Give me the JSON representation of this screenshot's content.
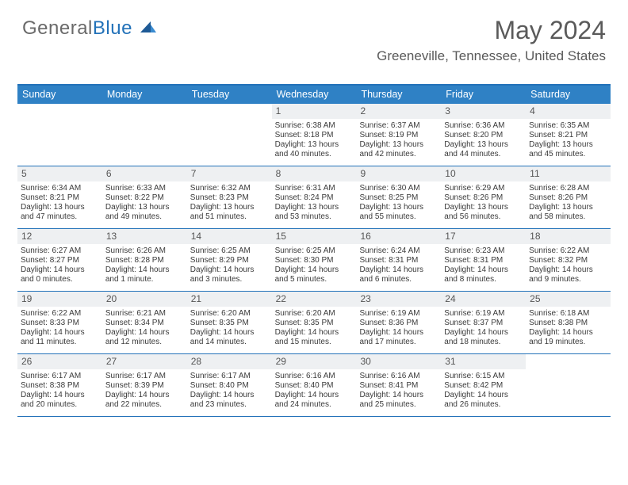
{
  "logo": {
    "part1": "General",
    "part2": "Blue"
  },
  "title": "May 2024",
  "location": "Greeneville, Tennessee, United States",
  "colors": {
    "header_bg": "#2f81c5",
    "header_border": "#2372b9",
    "daynum_bg": "#eef0f2",
    "text": "#3a3a3a",
    "title_text": "#5a5a5a"
  },
  "day_names": [
    "Sunday",
    "Monday",
    "Tuesday",
    "Wednesday",
    "Thursday",
    "Friday",
    "Saturday"
  ],
  "weeks": [
    [
      {
        "n": "",
        "sr": "",
        "ss": "",
        "dl1": "",
        "dl2": ""
      },
      {
        "n": "",
        "sr": "",
        "ss": "",
        "dl1": "",
        "dl2": ""
      },
      {
        "n": "",
        "sr": "",
        "ss": "",
        "dl1": "",
        "dl2": ""
      },
      {
        "n": "1",
        "sr": "Sunrise: 6:38 AM",
        "ss": "Sunset: 8:18 PM",
        "dl1": "Daylight: 13 hours",
        "dl2": "and 40 minutes."
      },
      {
        "n": "2",
        "sr": "Sunrise: 6:37 AM",
        "ss": "Sunset: 8:19 PM",
        "dl1": "Daylight: 13 hours",
        "dl2": "and 42 minutes."
      },
      {
        "n": "3",
        "sr": "Sunrise: 6:36 AM",
        "ss": "Sunset: 8:20 PM",
        "dl1": "Daylight: 13 hours",
        "dl2": "and 44 minutes."
      },
      {
        "n": "4",
        "sr": "Sunrise: 6:35 AM",
        "ss": "Sunset: 8:21 PM",
        "dl1": "Daylight: 13 hours",
        "dl2": "and 45 minutes."
      }
    ],
    [
      {
        "n": "5",
        "sr": "Sunrise: 6:34 AM",
        "ss": "Sunset: 8:21 PM",
        "dl1": "Daylight: 13 hours",
        "dl2": "and 47 minutes."
      },
      {
        "n": "6",
        "sr": "Sunrise: 6:33 AM",
        "ss": "Sunset: 8:22 PM",
        "dl1": "Daylight: 13 hours",
        "dl2": "and 49 minutes."
      },
      {
        "n": "7",
        "sr": "Sunrise: 6:32 AM",
        "ss": "Sunset: 8:23 PM",
        "dl1": "Daylight: 13 hours",
        "dl2": "and 51 minutes."
      },
      {
        "n": "8",
        "sr": "Sunrise: 6:31 AM",
        "ss": "Sunset: 8:24 PM",
        "dl1": "Daylight: 13 hours",
        "dl2": "and 53 minutes."
      },
      {
        "n": "9",
        "sr": "Sunrise: 6:30 AM",
        "ss": "Sunset: 8:25 PM",
        "dl1": "Daylight: 13 hours",
        "dl2": "and 55 minutes."
      },
      {
        "n": "10",
        "sr": "Sunrise: 6:29 AM",
        "ss": "Sunset: 8:26 PM",
        "dl1": "Daylight: 13 hours",
        "dl2": "and 56 minutes."
      },
      {
        "n": "11",
        "sr": "Sunrise: 6:28 AM",
        "ss": "Sunset: 8:26 PM",
        "dl1": "Daylight: 13 hours",
        "dl2": "and 58 minutes."
      }
    ],
    [
      {
        "n": "12",
        "sr": "Sunrise: 6:27 AM",
        "ss": "Sunset: 8:27 PM",
        "dl1": "Daylight: 14 hours",
        "dl2": "and 0 minutes."
      },
      {
        "n": "13",
        "sr": "Sunrise: 6:26 AM",
        "ss": "Sunset: 8:28 PM",
        "dl1": "Daylight: 14 hours",
        "dl2": "and 1 minute."
      },
      {
        "n": "14",
        "sr": "Sunrise: 6:25 AM",
        "ss": "Sunset: 8:29 PM",
        "dl1": "Daylight: 14 hours",
        "dl2": "and 3 minutes."
      },
      {
        "n": "15",
        "sr": "Sunrise: 6:25 AM",
        "ss": "Sunset: 8:30 PM",
        "dl1": "Daylight: 14 hours",
        "dl2": "and 5 minutes."
      },
      {
        "n": "16",
        "sr": "Sunrise: 6:24 AM",
        "ss": "Sunset: 8:31 PM",
        "dl1": "Daylight: 14 hours",
        "dl2": "and 6 minutes."
      },
      {
        "n": "17",
        "sr": "Sunrise: 6:23 AM",
        "ss": "Sunset: 8:31 PM",
        "dl1": "Daylight: 14 hours",
        "dl2": "and 8 minutes."
      },
      {
        "n": "18",
        "sr": "Sunrise: 6:22 AM",
        "ss": "Sunset: 8:32 PM",
        "dl1": "Daylight: 14 hours",
        "dl2": "and 9 minutes."
      }
    ],
    [
      {
        "n": "19",
        "sr": "Sunrise: 6:22 AM",
        "ss": "Sunset: 8:33 PM",
        "dl1": "Daylight: 14 hours",
        "dl2": "and 11 minutes."
      },
      {
        "n": "20",
        "sr": "Sunrise: 6:21 AM",
        "ss": "Sunset: 8:34 PM",
        "dl1": "Daylight: 14 hours",
        "dl2": "and 12 minutes."
      },
      {
        "n": "21",
        "sr": "Sunrise: 6:20 AM",
        "ss": "Sunset: 8:35 PM",
        "dl1": "Daylight: 14 hours",
        "dl2": "and 14 minutes."
      },
      {
        "n": "22",
        "sr": "Sunrise: 6:20 AM",
        "ss": "Sunset: 8:35 PM",
        "dl1": "Daylight: 14 hours",
        "dl2": "and 15 minutes."
      },
      {
        "n": "23",
        "sr": "Sunrise: 6:19 AM",
        "ss": "Sunset: 8:36 PM",
        "dl1": "Daylight: 14 hours",
        "dl2": "and 17 minutes."
      },
      {
        "n": "24",
        "sr": "Sunrise: 6:19 AM",
        "ss": "Sunset: 8:37 PM",
        "dl1": "Daylight: 14 hours",
        "dl2": "and 18 minutes."
      },
      {
        "n": "25",
        "sr": "Sunrise: 6:18 AM",
        "ss": "Sunset: 8:38 PM",
        "dl1": "Daylight: 14 hours",
        "dl2": "and 19 minutes."
      }
    ],
    [
      {
        "n": "26",
        "sr": "Sunrise: 6:17 AM",
        "ss": "Sunset: 8:38 PM",
        "dl1": "Daylight: 14 hours",
        "dl2": "and 20 minutes."
      },
      {
        "n": "27",
        "sr": "Sunrise: 6:17 AM",
        "ss": "Sunset: 8:39 PM",
        "dl1": "Daylight: 14 hours",
        "dl2": "and 22 minutes."
      },
      {
        "n": "28",
        "sr": "Sunrise: 6:17 AM",
        "ss": "Sunset: 8:40 PM",
        "dl1": "Daylight: 14 hours",
        "dl2": "and 23 minutes."
      },
      {
        "n": "29",
        "sr": "Sunrise: 6:16 AM",
        "ss": "Sunset: 8:40 PM",
        "dl1": "Daylight: 14 hours",
        "dl2": "and 24 minutes."
      },
      {
        "n": "30",
        "sr": "Sunrise: 6:16 AM",
        "ss": "Sunset: 8:41 PM",
        "dl1": "Daylight: 14 hours",
        "dl2": "and 25 minutes."
      },
      {
        "n": "31",
        "sr": "Sunrise: 6:15 AM",
        "ss": "Sunset: 8:42 PM",
        "dl1": "Daylight: 14 hours",
        "dl2": "and 26 minutes."
      },
      {
        "n": "",
        "sr": "",
        "ss": "",
        "dl1": "",
        "dl2": ""
      }
    ]
  ]
}
